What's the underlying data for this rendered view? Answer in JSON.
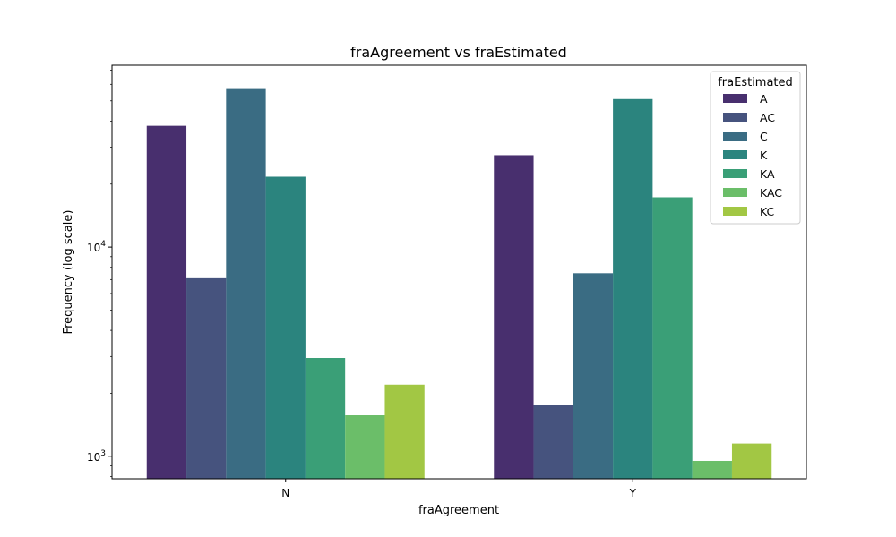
{
  "chart_data": {
    "type": "bar",
    "title": "fraAgreement vs fraEstimated",
    "xlabel": "fraAgreement",
    "ylabel": "Frequency (log scale)",
    "yscale": "log",
    "ylim": [
      780,
      74000
    ],
    "yticks": [
      {
        "value": 1000,
        "base": "10",
        "exp": "3"
      },
      {
        "value": 10000,
        "base": "10",
        "exp": "4"
      }
    ],
    "categories": [
      "N",
      "Y"
    ],
    "legend": {
      "title": "fraEstimated",
      "placement": "top-right"
    },
    "grid": false,
    "series": [
      {
        "name": "A",
        "color": "#482f6e",
        "values": [
          38000,
          27500
        ]
      },
      {
        "name": "AC",
        "color": "#46537e",
        "values": [
          7100,
          1750
        ]
      },
      {
        "name": "C",
        "color": "#3a6c83",
        "values": [
          57500,
          7500
        ]
      },
      {
        "name": "K",
        "color": "#2b847e",
        "values": [
          21700,
          51000
        ]
      },
      {
        "name": "KA",
        "color": "#3a9f77",
        "values": [
          2950,
          17300
        ]
      },
      {
        "name": "KAC",
        "color": "#6bbe69",
        "values": [
          1570,
          950
        ]
      },
      {
        "name": "KC",
        "color": "#a2c744",
        "values": [
          2200,
          1150
        ]
      }
    ]
  }
}
